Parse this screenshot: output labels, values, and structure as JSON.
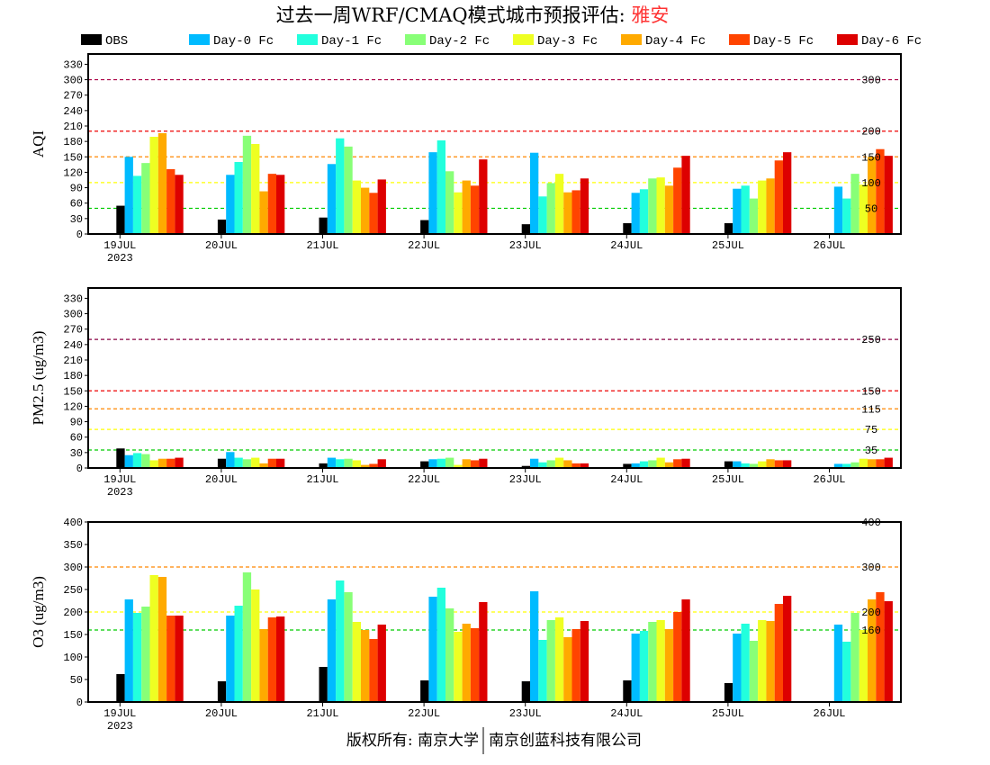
{
  "title": {
    "main": "过去一周WRF/CMAQ模式城市预报评估: ",
    "city": "雅安",
    "city_color": "#ff3333"
  },
  "footer": {
    "left": "版权所有: 南京大学",
    "right": "南京创蓝科技有限公司"
  },
  "legend": [
    {
      "name": "OBS",
      "color": "#000000"
    },
    {
      "name": "Day-0 Fc",
      "color": "#00bbff"
    },
    {
      "name": "Day-1 Fc",
      "color": "#22ffdd"
    },
    {
      "name": "Day-2 Fc",
      "color": "#88ff77"
    },
    {
      "name": "Day-3 Fc",
      "color": "#eeff22"
    },
    {
      "name": "Day-4 Fc",
      "color": "#ffaa00"
    },
    {
      "name": "Day-5 Fc",
      "color": "#ff4400"
    },
    {
      "name": "Day-6 Fc",
      "color": "#dd0000"
    }
  ],
  "chart_data": [
    {
      "type": "bar",
      "ylabel": "AQI",
      "ylim": [
        0,
        350
      ],
      "yticks": [
        0,
        30,
        60,
        90,
        120,
        150,
        180,
        210,
        240,
        270,
        300,
        330
      ],
      "categories": [
        "19JUL",
        "20JUL",
        "21JUL",
        "22JUL",
        "23JUL",
        "24JUL",
        "25JUL",
        "26JUL"
      ],
      "year_label": "2023",
      "ref_lines": [
        {
          "value": 50,
          "label": "50",
          "color": "#00cc00"
        },
        {
          "value": 100,
          "label": "100",
          "color": "#ffff00"
        },
        {
          "value": 150,
          "label": "150",
          "color": "#ff8800"
        },
        {
          "value": 200,
          "label": "200",
          "color": "#ee0000"
        },
        {
          "value": 300,
          "label": "300",
          "color": "#aa0044"
        }
      ],
      "series": [
        {
          "name": "OBS",
          "values": [
            55,
            28,
            32,
            27,
            19,
            21,
            21,
            null
          ]
        },
        {
          "name": "Day-0 Fc",
          "values": [
            150,
            115,
            136,
            159,
            158,
            80,
            88,
            92
          ]
        },
        {
          "name": "Day-1 Fc",
          "values": [
            113,
            140,
            186,
            182,
            73,
            87,
            94,
            69
          ]
        },
        {
          "name": "Day-2 Fc",
          "values": [
            138,
            191,
            170,
            122,
            99,
            108,
            69,
            117
          ]
        },
        {
          "name": "Day-3 Fc",
          "values": [
            189,
            175,
            104,
            81,
            117,
            110,
            104,
            96
          ]
        },
        {
          "name": "Day-4 Fc",
          "values": [
            196,
            83,
            90,
            104,
            81,
            94,
            108,
            150
          ]
        },
        {
          "name": "Day-5 Fc",
          "values": [
            126,
            117,
            80,
            94,
            85,
            129,
            143,
            165
          ]
        },
        {
          "name": "Day-6 Fc",
          "values": [
            115,
            115,
            106,
            145,
            108,
            152,
            159,
            152
          ]
        }
      ]
    },
    {
      "type": "bar",
      "ylabel": "PM2.5 (ug/m3)",
      "ylim": [
        0,
        350
      ],
      "yticks": [
        0,
        30,
        60,
        90,
        120,
        150,
        180,
        210,
        240,
        270,
        300,
        330
      ],
      "categories": [
        "19JUL",
        "20JUL",
        "21JUL",
        "22JUL",
        "23JUL",
        "24JUL",
        "25JUL",
        "26JUL"
      ],
      "year_label": "2023",
      "ref_lines": [
        {
          "value": 35,
          "label": "35",
          "color": "#00cc00"
        },
        {
          "value": 75,
          "label": "75",
          "color": "#ffff00"
        },
        {
          "value": 115,
          "label": "115",
          "color": "#ff8800"
        },
        {
          "value": 150,
          "label": "150",
          "color": "#ee0000"
        },
        {
          "value": 250,
          "label": "250",
          "color": "#880044"
        }
      ],
      "series": [
        {
          "name": "OBS",
          "values": [
            38,
            18,
            9,
            13,
            4,
            8,
            13,
            null
          ]
        },
        {
          "name": "Day-0 Fc",
          "values": [
            25,
            31,
            20,
            17,
            18,
            9,
            13,
            8
          ]
        },
        {
          "name": "Day-1 Fc",
          "values": [
            29,
            20,
            17,
            18,
            11,
            13,
            9,
            8
          ]
        },
        {
          "name": "Day-2 Fc",
          "values": [
            27,
            17,
            18,
            20,
            15,
            15,
            8,
            11
          ]
        },
        {
          "name": "Day-3 Fc",
          "values": [
            15,
            20,
            15,
            6,
            20,
            20,
            13,
            18
          ]
        },
        {
          "name": "Day-4 Fc",
          "values": [
            18,
            9,
            6,
            17,
            15,
            11,
            17,
            17
          ]
        },
        {
          "name": "Day-5 Fc",
          "values": [
            18,
            18,
            8,
            15,
            9,
            17,
            15,
            17
          ]
        },
        {
          "name": "Day-6 Fc",
          "values": [
            20,
            18,
            17,
            18,
            9,
            18,
            15,
            20
          ]
        }
      ]
    },
    {
      "type": "bar",
      "ylabel": "O3 (ug/m3)",
      "ylim": [
        0,
        400
      ],
      "yticks": [
        0,
        50,
        100,
        150,
        200,
        250,
        300,
        350,
        400
      ],
      "categories": [
        "19JUL",
        "20JUL",
        "21JUL",
        "22JUL",
        "23JUL",
        "24JUL",
        "25JUL",
        "26JUL"
      ],
      "year_label": "2023",
      "ref_lines": [
        {
          "value": 160,
          "label": "160",
          "color": "#00cc00"
        },
        {
          "value": 200,
          "label": "200",
          "color": "#ffff00"
        },
        {
          "value": 300,
          "label": "300",
          "color": "#ff8800"
        },
        {
          "value": 400,
          "label": "400",
          "color": "#ee0000"
        }
      ],
      "series": [
        {
          "name": "OBS",
          "values": [
            62,
            46,
            78,
            48,
            46,
            48,
            42,
            null
          ]
        },
        {
          "name": "Day-0 Fc",
          "values": [
            228,
            192,
            228,
            234,
            246,
            152,
            152,
            172
          ]
        },
        {
          "name": "Day-1 Fc",
          "values": [
            198,
            214,
            270,
            254,
            138,
            158,
            174,
            134
          ]
        },
        {
          "name": "Day-2 Fc",
          "values": [
            212,
            288,
            244,
            208,
            182,
            178,
            136,
            198
          ]
        },
        {
          "name": "Day-3 Fc",
          "values": [
            282,
            250,
            178,
            156,
            188,
            182,
            182,
            160
          ]
        },
        {
          "name": "Day-4 Fc",
          "values": [
            278,
            162,
            160,
            174,
            144,
            162,
            180,
            228
          ]
        },
        {
          "name": "Day-5 Fc",
          "values": [
            192,
            188,
            140,
            164,
            162,
            200,
            218,
            244
          ]
        },
        {
          "name": "Day-6 Fc",
          "values": [
            192,
            190,
            172,
            222,
            180,
            228,
            236,
            224
          ]
        }
      ]
    }
  ]
}
